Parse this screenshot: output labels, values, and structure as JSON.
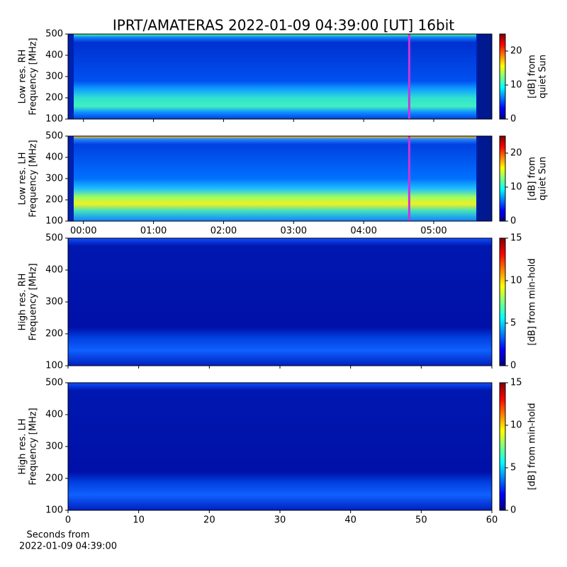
{
  "title": "IPRT/AMATERAS 2022-01-09 04:39:00 [UT]   16bit",
  "chart_data": [
    {
      "type": "spectrogram",
      "ylabel": [
        "Low res. RH",
        "Frequency [MHz]"
      ],
      "ylim": [
        100,
        500
      ],
      "yticks": [
        100,
        200,
        300,
        400,
        500
      ],
      "xlim": [
        -0.22,
        5.83
      ],
      "xticks": [
        0,
        1,
        2,
        3,
        4,
        5
      ],
      "xtick_labels": false,
      "marker_x": 4.65,
      "marker_color": "#cc33dd",
      "colormap": "jet",
      "clim": [
        0,
        25
      ],
      "cticks": [
        0,
        10,
        20
      ],
      "clabel": [
        "[dB] from",
        "quiet Sun"
      ]
    },
    {
      "type": "spectrogram",
      "ylabel": [
        "Low res. LH",
        "Frequency [MHz]"
      ],
      "ylim": [
        100,
        500
      ],
      "yticks": [
        100,
        200,
        300,
        400,
        500
      ],
      "xlim": [
        -0.22,
        5.83
      ],
      "xticks": [
        {
          "value": 0,
          "label": "00:00"
        },
        {
          "value": 1,
          "label": "01:00"
        },
        {
          "value": 2,
          "label": "02:00"
        },
        {
          "value": 3,
          "label": "03:00"
        },
        {
          "value": 4,
          "label": "04:00"
        },
        {
          "value": 5,
          "label": "05:00"
        }
      ],
      "xtick_labels": true,
      "marker_x": 4.65,
      "marker_color": "#cc33dd",
      "colormap": "jet",
      "clim": [
        0,
        25
      ],
      "cticks": [
        0,
        10,
        20
      ],
      "clabel": [
        "[dB] from",
        "quiet Sun"
      ]
    },
    {
      "type": "spectrogram",
      "ylabel": [
        "High res. RH",
        "Frequency [MHz]"
      ],
      "ylim": [
        100,
        500
      ],
      "yticks": [
        100,
        200,
        300,
        400,
        500
      ],
      "xlim": [
        0,
        60
      ],
      "xticks": [
        0,
        10,
        20,
        30,
        40,
        50,
        60
      ],
      "xtick_labels": false,
      "colormap": "jet",
      "clim": [
        0,
        15
      ],
      "cticks": [
        0,
        5,
        10,
        15
      ],
      "clabel": [
        "[dB] from min-hold"
      ]
    },
    {
      "type": "spectrogram",
      "ylabel": [
        "High res. LH",
        "Frequency [MHz]"
      ],
      "ylim": [
        100,
        500
      ],
      "yticks": [
        100,
        200,
        300,
        400,
        500
      ],
      "xlim": [
        0,
        60
      ],
      "xticks": [
        0,
        10,
        20,
        30,
        40,
        50,
        60
      ],
      "xtick_labels": true,
      "xlabel": [
        "Seconds from",
        "2022-01-09 04:39:00"
      ],
      "colormap": "jet",
      "clim": [
        0,
        15
      ],
      "cticks": [
        0,
        5,
        10,
        15
      ],
      "clabel": [
        "[dB] from min-hold"
      ]
    }
  ]
}
